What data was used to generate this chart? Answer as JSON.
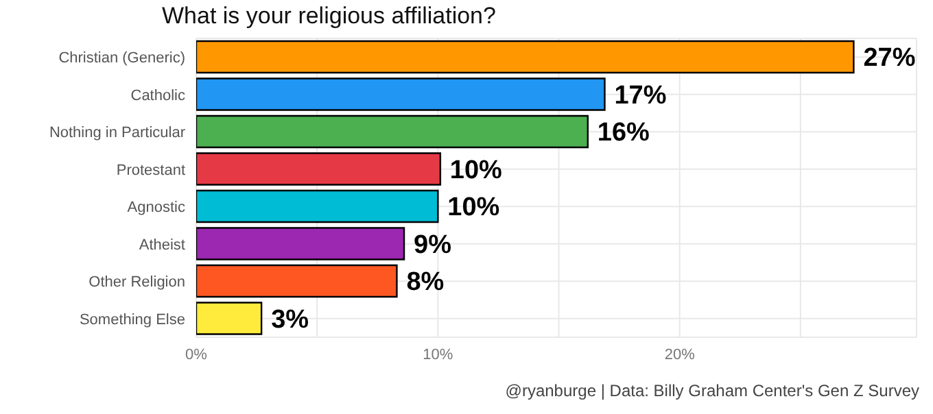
{
  "chart_data": {
    "type": "bar",
    "orientation": "horizontal",
    "title": "What is your religious affiliation?",
    "categories": [
      "Christian (Generic)",
      "Catholic",
      "Nothing in Particular",
      "Protestant",
      "Agnostic",
      "Atheist",
      "Other Religion",
      "Something Else"
    ],
    "values": [
      27.2,
      16.9,
      16.2,
      10.1,
      10.0,
      8.6,
      8.3,
      2.7
    ],
    "value_labels": [
      "27%",
      "17%",
      "16%",
      "10%",
      "10%",
      "9%",
      "8%",
      "3%"
    ],
    "colors": [
      "#ff9800",
      "#2196f3",
      "#4caf50",
      "#e63946",
      "#00bcd4",
      "#9c27b0",
      "#ff5722",
      "#ffeb3b"
    ],
    "xlim": [
      0,
      29.8
    ],
    "xticks": [
      {
        "value": 0,
        "label": "0%"
      },
      {
        "value": 5,
        "label": null
      },
      {
        "value": 10,
        "label": "10%"
      },
      {
        "value": 15,
        "label": null
      },
      {
        "value": 20,
        "label": "20%"
      },
      {
        "value": 25,
        "label": null
      }
    ],
    "grid": true,
    "annotations": [
      "@ryanburge | Data: Billy Graham Center's Gen Z Survey"
    ]
  }
}
